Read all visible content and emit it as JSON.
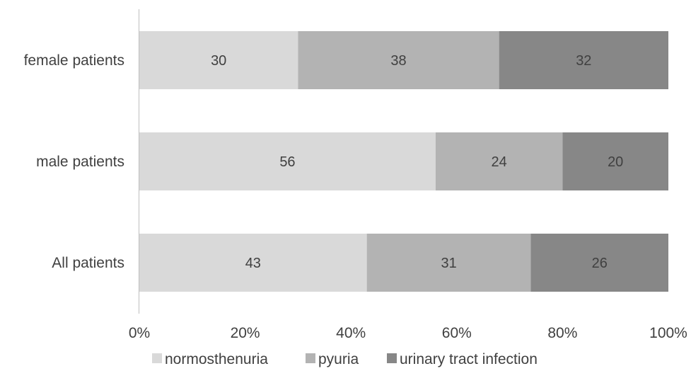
{
  "chart_data": {
    "type": "bar",
    "orientation": "horizontal",
    "stacked": "percent",
    "categories": [
      "female patients",
      "male patients",
      "All patients"
    ],
    "series": [
      {
        "name": "normosthenuria",
        "values": [
          30,
          56,
          43
        ],
        "color": "#d9d9d9"
      },
      {
        "name": "pyuria",
        "values": [
          38,
          24,
          31
        ],
        "color": "#b3b3b3"
      },
      {
        "name": "urinary tract infection",
        "values": [
          32,
          20,
          26
        ],
        "color": "#878787"
      }
    ],
    "x_ticks": [
      "0%",
      "20%",
      "40%",
      "60%",
      "80%",
      "100%"
    ],
    "xlim": [
      0,
      100
    ],
    "grid": false,
    "legend_position": "bottom"
  }
}
